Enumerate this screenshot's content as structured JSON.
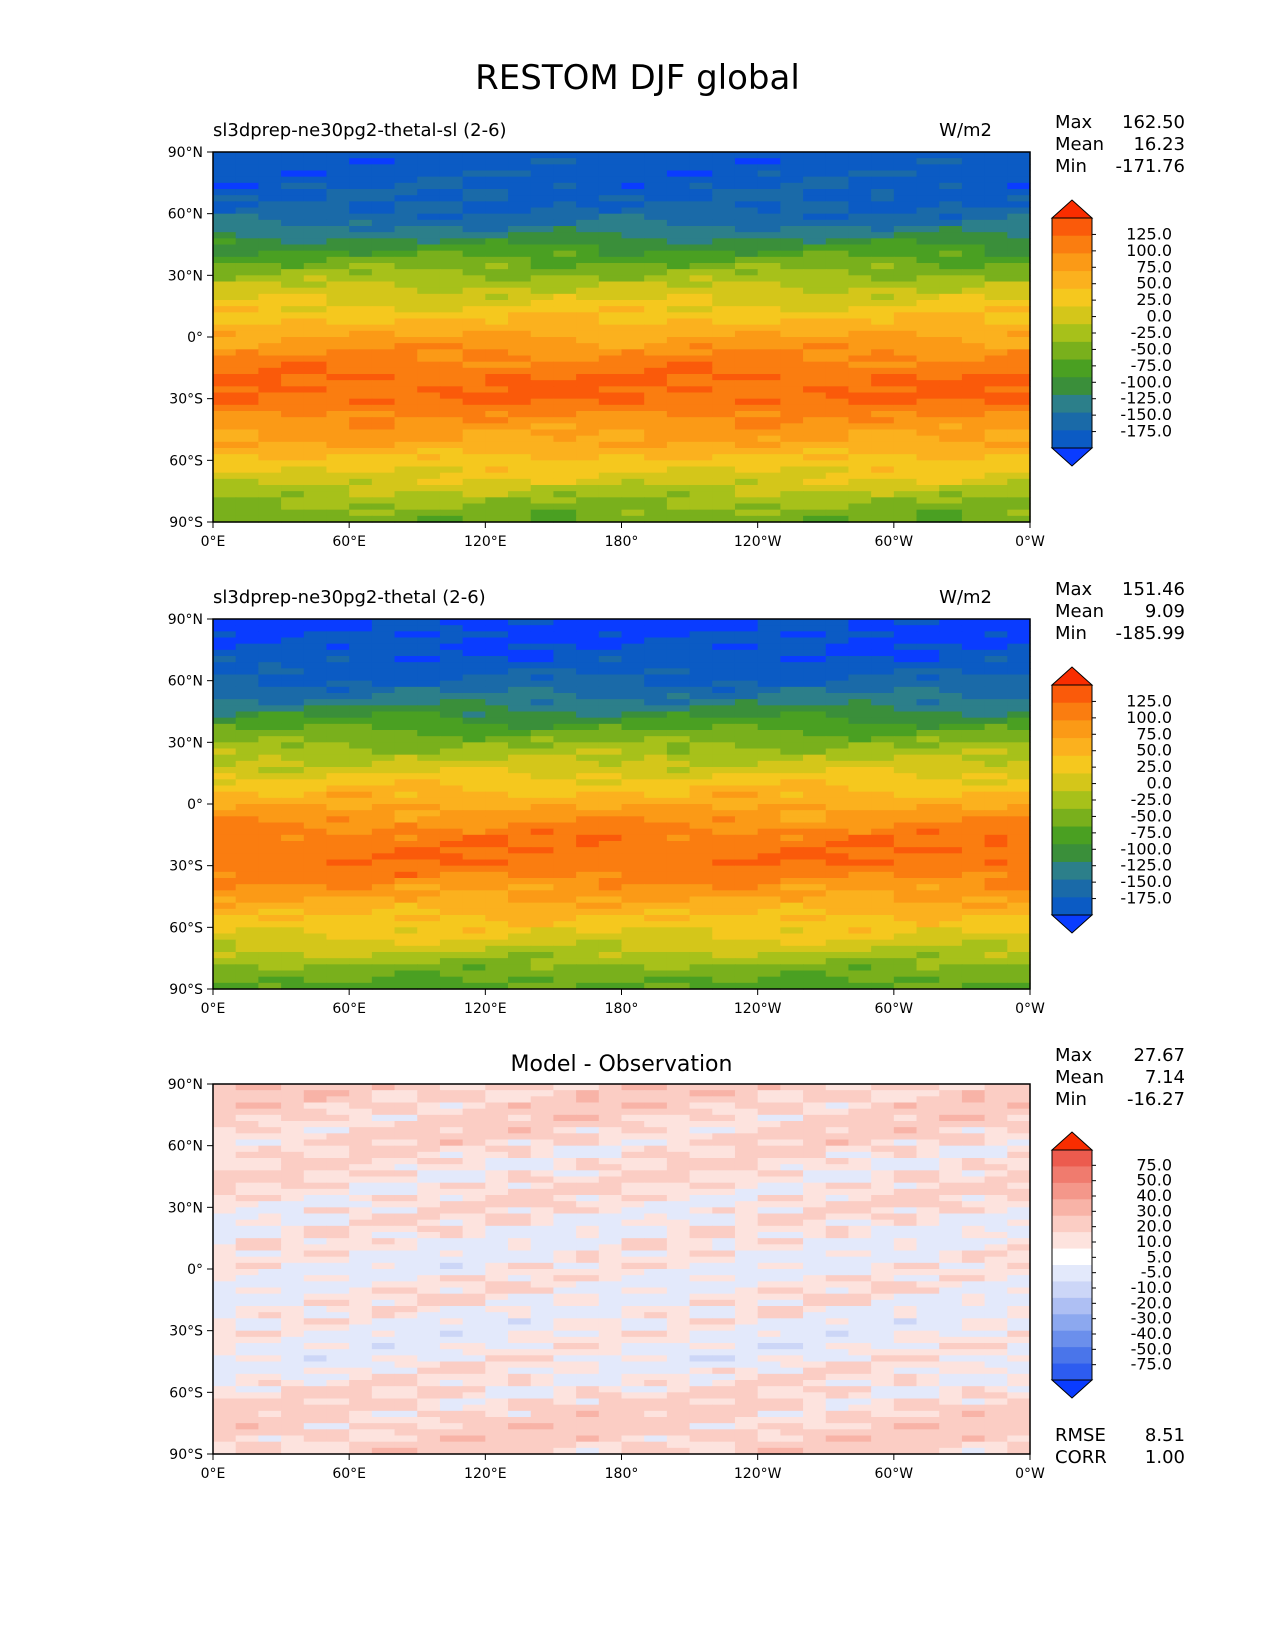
{
  "title": "RESTOM DJF global",
  "colors": {
    "abs_levels": [
      "#0a3cff",
      "#0b5bc4",
      "#1a6aa8",
      "#2c7f8a",
      "#3a8f3a",
      "#4aa022",
      "#79b01c",
      "#a7c11a",
      "#d4c61a",
      "#f5c81e",
      "#fbb11e",
      "#fb9a16",
      "#fa7d10",
      "#fa5a0a",
      "#f92d00"
    ],
    "diff_levels": [
      "#0a3cff",
      "#2d5cf0",
      "#4a75ea",
      "#6b8fec",
      "#8ca8ef",
      "#aebff3",
      "#ccd6f7",
      "#e3e9fb",
      "#ffffff",
      "#fde3de",
      "#fbcdc4",
      "#f8b3a7",
      "#f4978a",
      "#f07b6e",
      "#ec5b4e",
      "#f92d00"
    ]
  },
  "chart_data": [
    {
      "type": "heatmap",
      "panel": "test",
      "title_left": "sl3dprep-ne30pg2-thetal-sl (2-6)",
      "title_right": "W/m2",
      "stats": {
        "max_label": "Max",
        "max": "162.50",
        "mean_label": "Mean",
        "mean": "16.23",
        "min_label": "Min",
        "min": "-171.76"
      },
      "x_ticks": [
        "0°E",
        "60°E",
        "120°E",
        "180°",
        "120°W",
        "60°W",
        "0°W"
      ],
      "y_ticks": [
        "90°N",
        "60°N",
        "30°N",
        "0°",
        "30°S",
        "60°S",
        "90°S"
      ],
      "colorbar_labels": [
        "125.0",
        "100.0",
        "75.0",
        "50.0",
        "25.0",
        "0.0",
        "-25.0",
        "-50.0",
        "-75.0",
        "-100.0",
        "-125.0",
        "-150.0",
        "-175.0"
      ],
      "colorbar_extend": "both",
      "zonal_mean_profile": {
        "lat": [
          90,
          80,
          70,
          60,
          50,
          40,
          30,
          20,
          10,
          0,
          -10,
          -20,
          -30,
          -40,
          -50,
          -60,
          -70,
          -80,
          -90
        ],
        "value": [
          -165,
          -160,
          -155,
          -145,
          -105,
          -60,
          -20,
          15,
          45,
          75,
          105,
          125,
          125,
          95,
          75,
          45,
          15,
          -25,
          -45
        ]
      }
    },
    {
      "type": "heatmap",
      "panel": "reference",
      "title_left": "sl3dprep-ne30pg2-thetal (2-6)",
      "title_right": "W/m2",
      "stats": {
        "max_label": "Max",
        "max": "151.46",
        "mean_label": "Mean",
        "mean": "9.09",
        "min_label": "Min",
        "min": "-185.99"
      },
      "x_ticks": [
        "0°E",
        "60°E",
        "120°E",
        "180°",
        "120°W",
        "60°W",
        "0°W"
      ],
      "y_ticks": [
        "90°N",
        "60°N",
        "30°N",
        "0°",
        "30°S",
        "60°S",
        "90°S"
      ],
      "colorbar_labels": [
        "125.0",
        "100.0",
        "75.0",
        "50.0",
        "25.0",
        "0.0",
        "-25.0",
        "-50.0",
        "-75.0",
        "-100.0",
        "-125.0",
        "-150.0",
        "-175.0"
      ],
      "colorbar_extend": "both",
      "zonal_mean_profile": {
        "lat": [
          90,
          80,
          70,
          60,
          50,
          40,
          30,
          20,
          10,
          0,
          -10,
          -20,
          -30,
          -40,
          -50,
          -60,
          -70,
          -80,
          -90
        ],
        "value": [
          -180,
          -175,
          -165,
          -150,
          -115,
          -70,
          -30,
          5,
          40,
          70,
          100,
          120,
          120,
          90,
          65,
          35,
          5,
          -35,
          -60
        ]
      }
    },
    {
      "type": "heatmap",
      "panel": "diff",
      "title_center": "Model - Observation",
      "stats": {
        "max_label": "Max",
        "max": "27.67",
        "mean_label": "Mean",
        "mean": "7.14",
        "min_label": "Min",
        "min": "-16.27"
      },
      "extra_stats": {
        "rmse_label": "RMSE",
        "rmse": "8.51",
        "corr_label": "CORR",
        "corr": "1.00"
      },
      "x_ticks": [
        "0°E",
        "60°E",
        "120°E",
        "180°",
        "120°W",
        "60°W",
        "0°W"
      ],
      "y_ticks": [
        "90°N",
        "60°N",
        "30°N",
        "0°",
        "30°S",
        "60°S",
        "90°S"
      ],
      "colorbar_labels": [
        "75.0",
        "50.0",
        "40.0",
        "30.0",
        "20.0",
        "10.0",
        "5.0",
        "-5.0",
        "-10.0",
        "-20.0",
        "-30.0",
        "-40.0",
        "-50.0",
        "-75.0"
      ],
      "colorbar_extend": "both",
      "zonal_mean_profile": {
        "lat": [
          90,
          80,
          70,
          60,
          50,
          40,
          30,
          20,
          10,
          0,
          -10,
          -20,
          -30,
          -40,
          -50,
          -60,
          -70,
          -80,
          -90
        ],
        "value": [
          15,
          14,
          12,
          10,
          8,
          9,
          8,
          6,
          5,
          4,
          6,
          5,
          3,
          4,
          6,
          9,
          12,
          14,
          12
        ]
      }
    }
  ]
}
